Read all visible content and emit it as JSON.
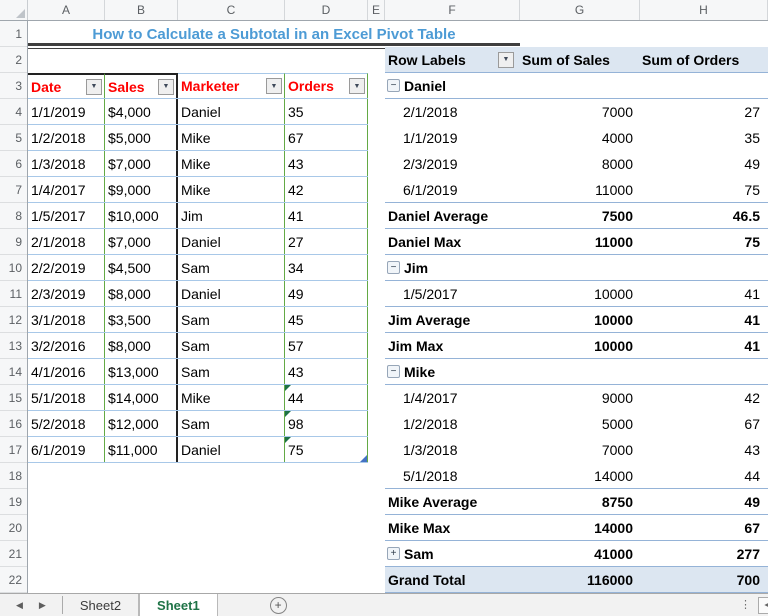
{
  "title": "How to Calculate a Subtotal in an Excel Pivot Table",
  "colors": {
    "title_blue": "#4D9BD5",
    "header_red": "#FF0000",
    "pivot_header_bg": "#DCE6F1",
    "pivot_line": "#95B3D7",
    "table_line": "#A8C8E8",
    "table_green": "#63A945",
    "table_dark": "#222222",
    "tab_active_green": "#1E7346",
    "error_green": "#1E7145",
    "handle_blue": "#4472C4"
  },
  "icons": {
    "filter_dropdown": "▼",
    "collapse": "−",
    "expand": "+",
    "nav_left": "◀",
    "nav_right": "▶",
    "add_sheet": "+",
    "overflow_dots": "⋮",
    "scroll_left": "◄"
  },
  "spreadsheet": {
    "column_headers": [
      "A",
      "B",
      "C",
      "D",
      "E",
      "F",
      "G",
      "H"
    ],
    "row_headers": [
      "1",
      "2",
      "3",
      "4",
      "5",
      "6",
      "7",
      "8",
      "9",
      "10",
      "11",
      "12",
      "13",
      "14",
      "15",
      "16",
      "17",
      "18",
      "19",
      "20",
      "21",
      "22"
    ]
  },
  "data_table": {
    "headers": [
      "Date",
      "Sales",
      "Marketer",
      "Orders"
    ],
    "rows": [
      {
        "date": "1/1/2019",
        "sales": "$4,000",
        "marketer": "Daniel",
        "orders": "35",
        "error_flag": false
      },
      {
        "date": "1/2/2018",
        "sales": "$5,000",
        "marketer": "Mike",
        "orders": "67",
        "error_flag": false
      },
      {
        "date": "1/3/2018",
        "sales": "$7,000",
        "marketer": "Mike",
        "orders": "43",
        "error_flag": false
      },
      {
        "date": "1/4/2017",
        "sales": "$9,000",
        "marketer": "Mike",
        "orders": "42",
        "error_flag": false
      },
      {
        "date": "1/5/2017",
        "sales": "$10,000",
        "marketer": "Jim",
        "orders": "41",
        "error_flag": false
      },
      {
        "date": "2/1/2018",
        "sales": "$7,000",
        "marketer": "Daniel",
        "orders": "27",
        "error_flag": false
      },
      {
        "date": "2/2/2019",
        "sales": "$4,500",
        "marketer": "Sam",
        "orders": "34",
        "error_flag": false
      },
      {
        "date": "2/3/2019",
        "sales": "$8,000",
        "marketer": "Daniel",
        "orders": "49",
        "error_flag": false
      },
      {
        "date": "3/1/2018",
        "sales": "$3,500",
        "marketer": "Sam",
        "orders": "45",
        "error_flag": false
      },
      {
        "date": "3/2/2016",
        "sales": "$8,000",
        "marketer": "Sam",
        "orders": "57",
        "error_flag": false
      },
      {
        "date": "4/1/2016",
        "sales": "$13,000",
        "marketer": "Sam",
        "orders": "43",
        "error_flag": false
      },
      {
        "date": "5/1/2018",
        "sales": "$14,000",
        "marketer": "Mike",
        "orders": "44",
        "error_flag": true
      },
      {
        "date": "5/2/2018",
        "sales": "$12,000",
        "marketer": "Sam",
        "orders": "98",
        "error_flag": true
      },
      {
        "date": "6/1/2019",
        "sales": "$11,000",
        "marketer": "Daniel",
        "orders": "75",
        "error_flag": true
      }
    ]
  },
  "pivot_table": {
    "headers": [
      "Row Labels",
      "Sum of Sales",
      "Sum of Orders"
    ],
    "rows": [
      {
        "label": "Daniel",
        "sales": "",
        "orders": "",
        "type": "group",
        "toggle": "collapse",
        "line_below": true
      },
      {
        "label": "2/1/2018",
        "sales": "7000",
        "orders": "27",
        "type": "detail",
        "line_below": false
      },
      {
        "label": "1/1/2019",
        "sales": "4000",
        "orders": "35",
        "type": "detail",
        "line_below": false
      },
      {
        "label": "2/3/2019",
        "sales": "8000",
        "orders": "49",
        "type": "detail",
        "line_below": false
      },
      {
        "label": "6/1/2019",
        "sales": "11000",
        "orders": "75",
        "type": "detail",
        "line_below": true
      },
      {
        "label": "Daniel Average",
        "sales": "7500",
        "orders": "46.5",
        "type": "subtotal",
        "line_below": true
      },
      {
        "label": "Daniel Max",
        "sales": "11000",
        "orders": "75",
        "type": "subtotal",
        "line_below": true
      },
      {
        "label": "Jim",
        "sales": "",
        "orders": "",
        "type": "group",
        "toggle": "collapse",
        "line_below": true
      },
      {
        "label": "1/5/2017",
        "sales": "10000",
        "orders": "41",
        "type": "detail",
        "line_below": true
      },
      {
        "label": "Jim Average",
        "sales": "10000",
        "orders": "41",
        "type": "subtotal",
        "line_below": true
      },
      {
        "label": "Jim Max",
        "sales": "10000",
        "orders": "41",
        "type": "subtotal",
        "line_below": true
      },
      {
        "label": "Mike",
        "sales": "",
        "orders": "",
        "type": "group",
        "toggle": "collapse",
        "line_below": true
      },
      {
        "label": "1/4/2017",
        "sales": "9000",
        "orders": "42",
        "type": "detail",
        "line_below": false
      },
      {
        "label": "1/2/2018",
        "sales": "5000",
        "orders": "67",
        "type": "detail",
        "line_below": false
      },
      {
        "label": "1/3/2018",
        "sales": "7000",
        "orders": "43",
        "type": "detail",
        "line_below": false
      },
      {
        "label": "5/1/2018",
        "sales": "14000",
        "orders": "44",
        "type": "detail",
        "line_below": true
      },
      {
        "label": "Mike Average",
        "sales": "8750",
        "orders": "49",
        "type": "subtotal",
        "line_below": true
      },
      {
        "label": "Mike Max",
        "sales": "14000",
        "orders": "67",
        "type": "subtotal",
        "line_below": true
      },
      {
        "label": "Sam",
        "sales": "41000",
        "orders": "277",
        "type": "group",
        "toggle": "expand",
        "line_below": true
      },
      {
        "label": "Grand Total",
        "sales": "116000",
        "orders": "700",
        "type": "grand",
        "line_below": true
      }
    ]
  },
  "sheet_tabs": {
    "tabs": [
      {
        "label": "Sheet2",
        "active": false
      },
      {
        "label": "Sheet1",
        "active": true
      }
    ]
  }
}
